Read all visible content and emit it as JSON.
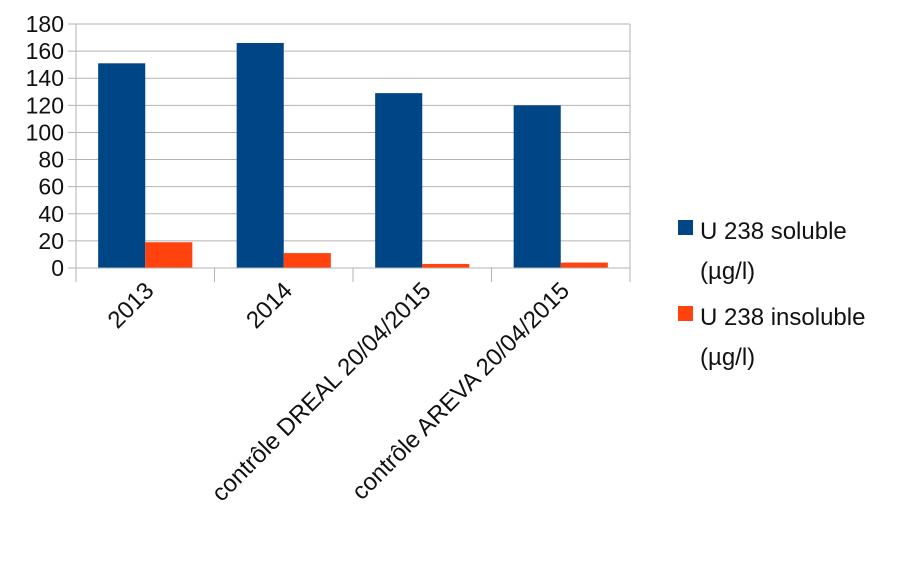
{
  "chart_data": {
    "type": "bar",
    "title": "",
    "xlabel": "",
    "ylabel": "",
    "categories": [
      "2013",
      "2014",
      "contrôle DREAL 20/04/2015",
      "contrôle AREVA  20/04/2015"
    ],
    "series": [
      {
        "name": "U 238 soluble\n(µg/l)",
        "color": "#004586",
        "values": [
          151,
          166,
          129,
          120
        ]
      },
      {
        "name": "U 238 insoluble\n(µg/l)",
        "color": "#ff420e",
        "values": [
          19,
          11,
          3,
          4
        ]
      }
    ],
    "ylim": [
      0,
      180
    ],
    "yticks": [
      0,
      20,
      40,
      60,
      80,
      100,
      120,
      140,
      160,
      180
    ],
    "grid": true,
    "legend_position": "right"
  }
}
